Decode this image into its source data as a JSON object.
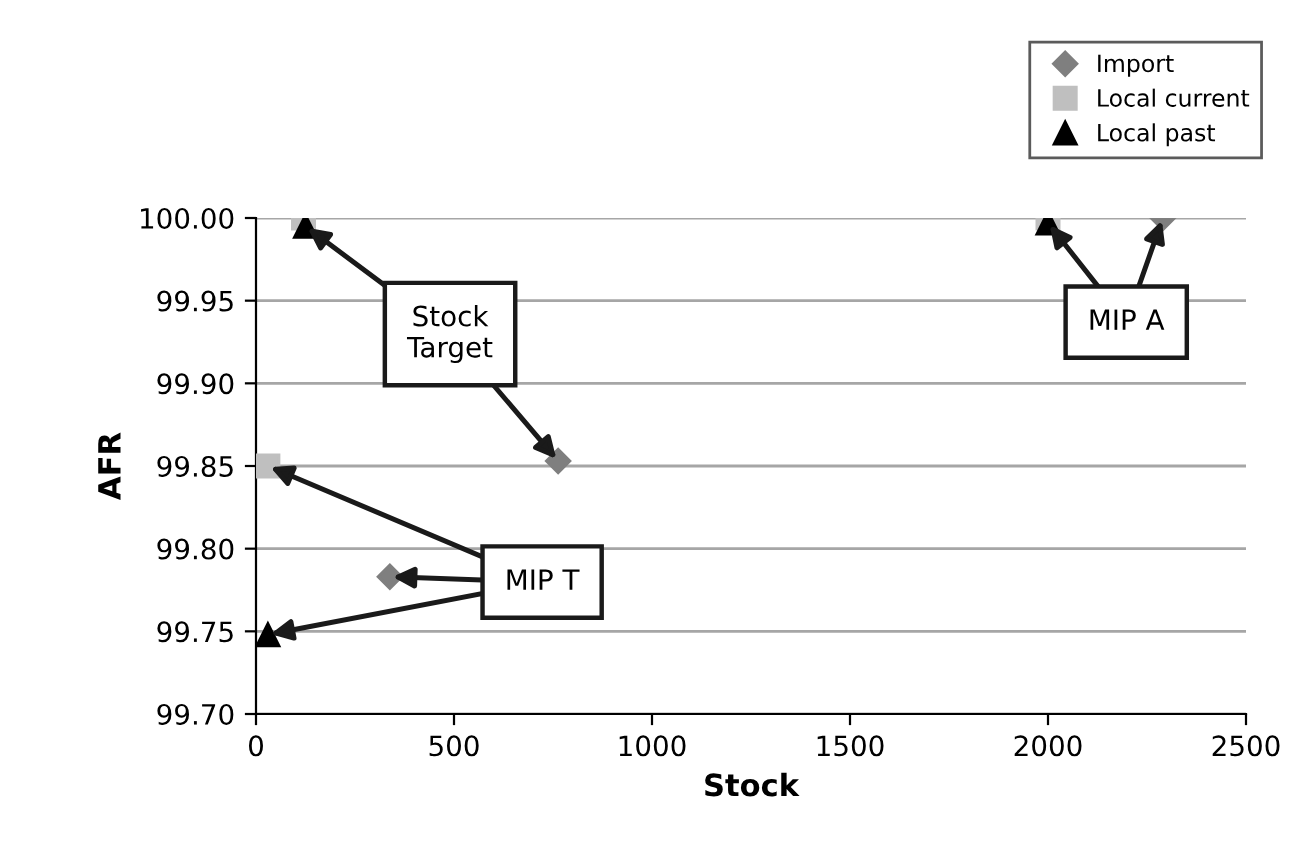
{
  "chart_data": {
    "type": "scatter",
    "xlabel": "Stock",
    "ylabel": "AFR",
    "series": [
      {
        "name": "Import",
        "color": "#7f7f7f",
        "marker": "diamond",
        "x": [
          763,
          338,
          2290
        ],
        "values": [
          99.853,
          99.783,
          100.0
        ]
      },
      {
        "name": "Local current",
        "color": "#bfbfbf",
        "marker": "square",
        "x": [
          120,
          30,
          2000
        ],
        "values": [
          100.0,
          99.85,
          100.0
        ]
      },
      {
        "name": "Local past",
        "color": "#000000",
        "marker": "triangle",
        "x": [
          125,
          30,
          2000
        ],
        "values": [
          99.995,
          99.748,
          99.997
        ]
      }
    ],
    "xlim": [
      0,
      2500
    ],
    "xticks": [
      0,
      500,
      1000,
      1500,
      2000,
      2500
    ],
    "ylim": [
      99.7,
      100.0
    ],
    "yticks": [
      {
        "value": 99.7,
        "label": "99.70"
      },
      {
        "value": 99.75,
        "label": "99.75"
      },
      {
        "value": 99.8,
        "label": "99.80"
      },
      {
        "value": 99.85,
        "label": "99.85"
      },
      {
        "value": 99.9,
        "label": "99.90"
      },
      {
        "value": 99.95,
        "label": "99.95"
      },
      {
        "value": 100.0,
        "label": "100.00"
      }
    ],
    "grid": "y",
    "legend": "top right",
    "annotations": [
      {
        "text": "Stock\nTarget",
        "x": 125,
        "y": 99.995
      },
      {
        "text": "MIP T",
        "x": 338,
        "y": 99.783
      },
      {
        "text": "MIP A",
        "x": 2000,
        "y": 99.997
      }
    ]
  }
}
